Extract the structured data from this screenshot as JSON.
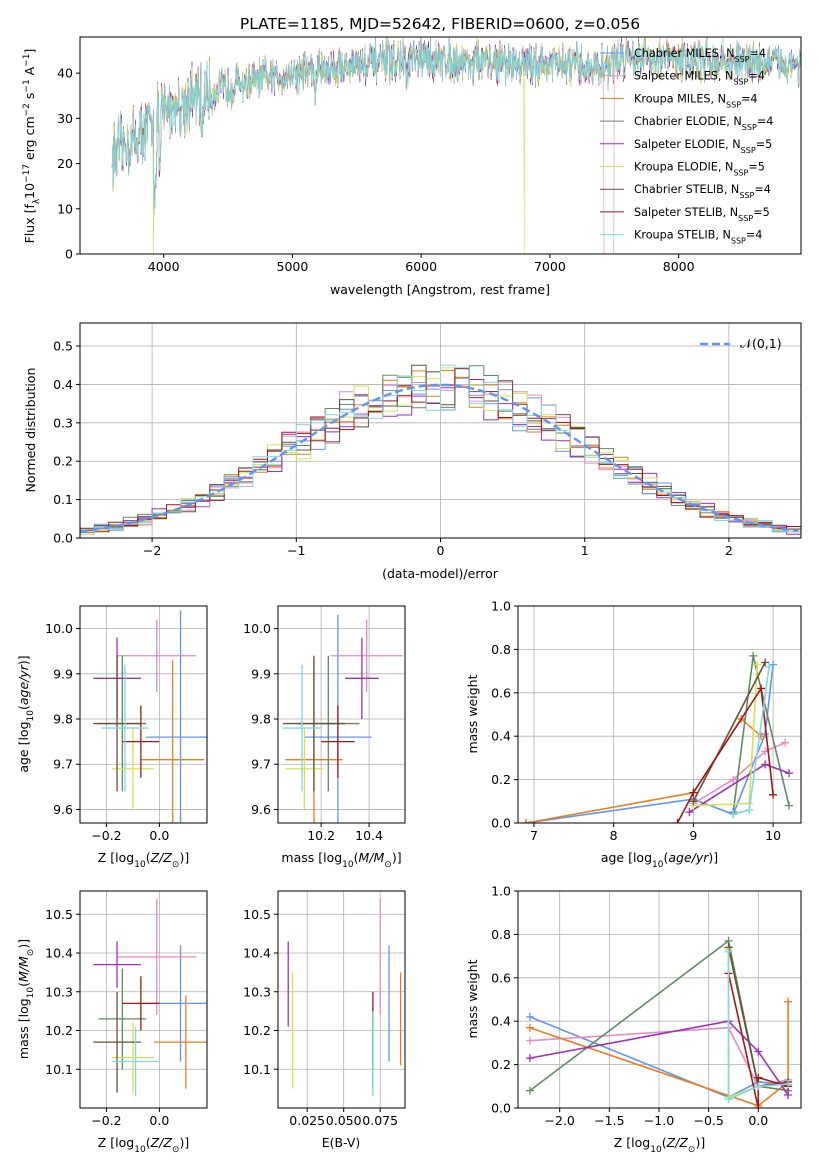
{
  "figure": {
    "title": "PLATE=1185, MJD=52642, FIBERID=0600, z=0.056"
  },
  "colors": {
    "Chabrier MILES": "#6495ed",
    "Salpeter MILES": "#e889c5",
    "Kroupa MILES": "#e67e22",
    "Chabrier ELODIE": "#5f8b5f",
    "Salpeter ELODIE": "#9b30b5",
    "Kroupa ELODIE": "#d4e157",
    "Chabrier STELIB": "#6b4f3a",
    "Salpeter STELIB": "#a01818",
    "Kroupa STELIB": "#7fd8e0"
  },
  "chart_data": [
    {
      "type": "line",
      "id": "spectrum",
      "xlabel": "wavelength [Angstrom, rest frame]",
      "ylabel": "Flux [f",
      "ylabel_parts": {
        "a": "Flux [f",
        "b": "λ",
        "c": "10",
        "d": "−17",
        "e": " erg cm",
        "f": "−2",
        "g": " s",
        "h": "−1",
        "i": " A",
        "j": "−1",
        "k": "]"
      },
      "xlim": [
        3350,
        8950
      ],
      "ylim": [
        0,
        48
      ],
      "xticks": [
        4000,
        5000,
        6000,
        7000,
        8000
      ],
      "yticks": [
        0,
        10,
        20,
        30,
        40
      ],
      "xtick_labels": [
        "4000",
        "5000",
        "6000",
        "7000",
        "8000"
      ],
      "ytick_labels": [
        "0",
        "10",
        "20",
        "30",
        "40"
      ],
      "continuum": {
        "x": [
          3600,
          3700,
          3800,
          3900,
          4000,
          4200,
          4500,
          5000,
          5500,
          6000,
          6500,
          7000,
          7400,
          7600,
          8000,
          8500,
          8950
        ],
        "y": [
          22,
          24,
          26,
          29,
          32,
          34,
          37,
          40,
          42,
          43,
          42.5,
          42,
          41,
          44,
          43,
          42.5,
          42
        ]
      },
      "legend": {
        "placement": "upper-right",
        "entries": [
          {
            "name": "Chabrier MILES",
            "n": "4"
          },
          {
            "name": "Salpeter MILES",
            "n": "4"
          },
          {
            "name": "Kroupa MILES",
            "n": "4"
          },
          {
            "name": "Chabrier ELODIE",
            "n": "4"
          },
          {
            "name": "Salpeter ELODIE",
            "n": "5"
          },
          {
            "name": "Kroupa ELODIE",
            "n": "5"
          },
          {
            "name": "Chabrier STELIB",
            "n": "4"
          },
          {
            "name": "Salpeter STELIB",
            "n": "5"
          },
          {
            "name": "Kroupa STELIB",
            "n": "4"
          }
        ]
      }
    },
    {
      "type": "bar",
      "id": "residuals",
      "xlabel": "(data-model)/error",
      "ylabel": "Normed distribution",
      "xlim": [
        -2.5,
        2.5
      ],
      "ylim": [
        0,
        0.56
      ],
      "xticks": [
        -2,
        -1,
        0,
        1,
        2
      ],
      "yticks": [
        0,
        0.1,
        0.2,
        0.3,
        0.4,
        0.5
      ],
      "xtick_labels": [
        "−2",
        "−1",
        "0",
        "1",
        "2"
      ],
      "ytick_labels": [
        "0.0",
        "0.1",
        "0.2",
        "0.3",
        "0.4",
        "0.5"
      ],
      "bin_width": 0.1,
      "legend": {
        "placement": "upper-right",
        "label": "𝒩(0,1)"
      },
      "grid": true
    },
    {
      "type": "scatter",
      "id": "age-vs-Z",
      "xlabel": "Z [log10(Z/Z⊙)]",
      "ylabel": "age  [log10(age/yr)]",
      "xlim": [
        -0.3,
        0.18
      ],
      "ylim": [
        9.57,
        10.05
      ],
      "xticks": [
        -0.2,
        0.0
      ],
      "yticks": [
        9.6,
        9.7,
        9.8,
        9.9,
        10.0
      ],
      "xtick_labels": [
        "−0.2",
        "0.0"
      ],
      "ytick_labels": [
        "9.6",
        "9.7",
        "9.8",
        "9.9",
        "10.0"
      ],
      "points": [
        {
          "model": "Chabrier MILES",
          "x": 0.08,
          "xerr": 0.13,
          "y": 9.76,
          "yerr": 0.28
        },
        {
          "model": "Salpeter MILES",
          "x": -0.01,
          "xerr": 0.15,
          "y": 9.94,
          "yerr": 0.08
        },
        {
          "model": "Kroupa MILES",
          "x": 0.05,
          "xerr": 0.12,
          "y": 9.71,
          "yerr": 0.22
        },
        {
          "model": "Chabrier ELODIE",
          "x": -0.14,
          "xerr": 0.09,
          "y": 9.79,
          "yerr": 0.15
        },
        {
          "model": "Salpeter ELODIE",
          "x": -0.16,
          "xerr": 0.09,
          "y": 9.89,
          "yerr": 0.09
        },
        {
          "model": "Kroupa ELODIE",
          "x": -0.1,
          "xerr": 0.08,
          "y": 9.69,
          "yerr": 0.09
        },
        {
          "model": "Chabrier STELIB",
          "x": -0.16,
          "xerr": 0.09,
          "y": 9.79,
          "yerr": 0.15
        },
        {
          "model": "Salpeter STELIB",
          "x": -0.07,
          "xerr": 0.07,
          "y": 9.75,
          "yerr": 0.08
        },
        {
          "model": "Kroupa STELIB",
          "x": -0.13,
          "xerr": 0.09,
          "y": 9.78,
          "yerr": 0.14
        }
      ]
    },
    {
      "type": "scatter",
      "id": "age-vs-mass",
      "xlabel": "mass [log10(M/M⊙)]",
      "ylabel": "",
      "xlim": [
        10.02,
        10.55
      ],
      "ylim": [
        9.57,
        10.05
      ],
      "xticks": [
        10.2,
        10.4
      ],
      "yticks": [
        9.6,
        9.7,
        9.8,
        9.9,
        10.0
      ],
      "xtick_labels": [
        "10.2",
        "10.4"
      ],
      "ytick_labels": [
        "9.6",
        "9.7",
        "9.8",
        "9.9",
        "10.0"
      ],
      "points": [
        {
          "model": "Chabrier MILES",
          "x": 10.27,
          "xerr": 0.14,
          "y": 9.76,
          "yerr": 0.27
        },
        {
          "model": "Salpeter MILES",
          "x": 10.39,
          "xerr": 0.15,
          "y": 9.94,
          "yerr": 0.08
        },
        {
          "model": "Kroupa MILES",
          "x": 10.17,
          "xerr": 0.12,
          "y": 9.71,
          "yerr": 0.22
        },
        {
          "model": "Chabrier ELODIE",
          "x": 10.23,
          "xerr": 0.13,
          "y": 9.79,
          "yerr": 0.15
        },
        {
          "model": "Salpeter ELODIE",
          "x": 10.37,
          "xerr": 0.07,
          "y": 9.89,
          "yerr": 0.09
        },
        {
          "model": "Kroupa ELODIE",
          "x": 10.13,
          "xerr": 0.08,
          "y": 9.69,
          "yerr": 0.09
        },
        {
          "model": "Chabrier STELIB",
          "x": 10.17,
          "xerr": 0.13,
          "y": 9.79,
          "yerr": 0.15
        },
        {
          "model": "Salpeter STELIB",
          "x": 10.27,
          "xerr": 0.07,
          "y": 9.75,
          "yerr": 0.08
        },
        {
          "model": "Kroupa STELIB",
          "x": 10.12,
          "xerr": 0.08,
          "y": 9.78,
          "yerr": 0.14
        }
      ]
    },
    {
      "type": "line",
      "id": "mass-weight-vs-age",
      "xlabel": "age  [log10(age/yr)]",
      "ylabel": "mass weight",
      "xlim": [
        6.8,
        10.35
      ],
      "ylim": [
        0,
        1
      ],
      "xticks": [
        7,
        8,
        9,
        10
      ],
      "yticks": [
        0,
        0.2,
        0.4,
        0.6,
        0.8,
        1.0
      ],
      "xtick_labels": [
        "7",
        "8",
        "9",
        "10"
      ],
      "ytick_labels": [
        "0.0",
        "0.2",
        "0.4",
        "0.6",
        "0.8",
        "1.0"
      ],
      "series": [
        {
          "model": "Chabrier MILES",
          "x": [
            6.9,
            9.0,
            9.5,
            9.9,
            10.0
          ],
          "y": [
            0.0,
            0.11,
            0.04,
            0.41,
            0.73
          ]
        },
        {
          "model": "Salpeter MILES",
          "x": [
            9.0,
            9.5,
            9.9,
            10.15
          ],
          "y": [
            0.09,
            0.2,
            0.33,
            0.37
          ]
        },
        {
          "model": "Kroupa MILES",
          "x": [
            6.9,
            9.0,
            9.6,
            9.85
          ],
          "y": [
            0.0,
            0.14,
            0.48,
            0.4
          ]
        },
        {
          "model": "Chabrier ELODIE",
          "x": [
            9.5,
            9.75,
            10.2
          ],
          "y": [
            0.05,
            0.77,
            0.08
          ]
        },
        {
          "model": "Salpeter ELODIE",
          "x": [
            8.95,
            9.9,
            10.2
          ],
          "y": [
            0.05,
            0.27,
            0.23
          ]
        },
        {
          "model": "Kroupa ELODIE",
          "x": [
            9.0,
            9.7,
            9.8
          ],
          "y": [
            0.08,
            0.09,
            0.73
          ]
        },
        {
          "model": "Chabrier STELIB",
          "x": [
            9.0,
            9.9
          ],
          "y": [
            0.1,
            0.74
          ]
        },
        {
          "model": "Salpeter STELIB",
          "x": [
            8.8,
            9.0,
            9.85,
            10.0
          ],
          "y": [
            0.0,
            0.14,
            0.62,
            0.13
          ]
        },
        {
          "model": "Kroupa STELIB",
          "x": [
            9.5,
            9.7,
            9.95
          ],
          "y": [
            0.04,
            0.06,
            0.72
          ]
        }
      ]
    },
    {
      "type": "scatter",
      "id": "mass-vs-Z",
      "xlabel": "Z [log10(Z/Z⊙)]",
      "ylabel": "mass [log10(M/M⊙)]",
      "xlim": [
        -0.3,
        0.18
      ],
      "ylim": [
        10.0,
        10.56
      ],
      "xticks": [
        -0.2,
        0.0
      ],
      "yticks": [
        10.1,
        10.2,
        10.3,
        10.4,
        10.5
      ],
      "xtick_labels": [
        "−0.2",
        "0.0"
      ],
      "ytick_labels": [
        "10.1",
        "10.2",
        "10.3",
        "10.4",
        "10.5"
      ],
      "points": [
        {
          "model": "Chabrier MILES",
          "x": 0.08,
          "xerr": 0.13,
          "y": 10.27,
          "yerr": 0.15
        },
        {
          "model": "Salpeter MILES",
          "x": -0.01,
          "xerr": 0.15,
          "y": 10.39,
          "yerr": 0.15
        },
        {
          "model": "Kroupa MILES",
          "x": 0.1,
          "xerr": 0.12,
          "y": 10.17,
          "yerr": 0.12
        },
        {
          "model": "Chabrier ELODIE",
          "x": -0.14,
          "xerr": 0.09,
          "y": 10.23,
          "yerr": 0.13
        },
        {
          "model": "Salpeter ELODIE",
          "x": -0.16,
          "xerr": 0.09,
          "y": 10.37,
          "yerr": 0.06
        },
        {
          "model": "Kroupa ELODIE",
          "x": -0.1,
          "xerr": 0.08,
          "y": 10.13,
          "yerr": 0.09
        },
        {
          "model": "Chabrier STELIB",
          "x": -0.16,
          "xerr": 0.09,
          "y": 10.17,
          "yerr": 0.13
        },
        {
          "model": "Salpeter STELIB",
          "x": -0.07,
          "xerr": 0.07,
          "y": 10.27,
          "yerr": 0.07
        },
        {
          "model": "Kroupa STELIB",
          "x": -0.09,
          "xerr": 0.09,
          "y": 10.12,
          "yerr": 0.09
        }
      ]
    },
    {
      "type": "scatter",
      "id": "mass-vs-ebv",
      "xlabel": "E(B-V)",
      "ylabel": "",
      "xlim": [
        0.005,
        0.092
      ],
      "ylim": [
        10.0,
        10.56
      ],
      "xticks": [
        0.025,
        0.05,
        0.075
      ],
      "yticks": [
        10.1,
        10.2,
        10.3,
        10.4,
        10.5
      ],
      "xtick_labels": [
        "0.025",
        "0.050",
        "0.075"
      ],
      "ytick_labels": [
        "10.1",
        "10.2",
        "10.3",
        "10.4",
        "10.5"
      ],
      "points": [
        {
          "model": "Chabrier MILES",
          "x": 0.081,
          "y": 10.27,
          "yerr": 0.15
        },
        {
          "model": "Salpeter MILES",
          "x": 0.075,
          "y": 10.39,
          "yerr": 0.15
        },
        {
          "model": "Kroupa MILES",
          "x": 0.089,
          "y": 10.23,
          "yerr": 0.12
        },
        {
          "model": "Chabrier ELODIE",
          "x": 0.07,
          "y": 10.15,
          "yerr": 0.1
        },
        {
          "model": "Salpeter ELODIE",
          "x": 0.012,
          "y": 10.32,
          "yerr": 0.11
        },
        {
          "model": "Kroupa ELODIE",
          "x": 0.015,
          "y": 10.2,
          "yerr": 0.15
        },
        {
          "model": "Chabrier STELIB",
          "x": 0.07,
          "y": 10.18,
          "yerr": 0.08
        },
        {
          "model": "Salpeter STELIB",
          "x": 0.07,
          "y": 10.26,
          "yerr": 0.04
        },
        {
          "model": "Kroupa STELIB",
          "x": 0.07,
          "y": 10.14,
          "yerr": 0.11
        }
      ]
    },
    {
      "type": "line",
      "id": "mass-weight-vs-Z",
      "xlabel": "Z [log10(Z/Z⊙)]",
      "ylabel": "mass weight",
      "xlim": [
        -2.42,
        0.43
      ],
      "ylim": [
        0,
        1
      ],
      "xticks": [
        -2.0,
        -1.5,
        -1.0,
        -0.5,
        0.0
      ],
      "yticks": [
        0,
        0.2,
        0.4,
        0.6,
        0.8,
        1.0
      ],
      "xtick_labels": [
        "−2.0",
        "−1.5",
        "−1.0",
        "−0.5",
        "0.0"
      ],
      "ytick_labels": [
        "0.0",
        "0.2",
        "0.4",
        "0.6",
        "0.8",
        "1.0"
      ],
      "series": [
        {
          "model": "Chabrier MILES",
          "x": [
            -2.3,
            -0.3,
            0.0,
            0.3
          ],
          "y": [
            0.42,
            0.05,
            0.12,
            0.11
          ]
        },
        {
          "model": "Salpeter MILES",
          "x": [
            -2.3,
            -0.3,
            0.0,
            0.3
          ],
          "y": [
            0.31,
            0.37,
            0.1,
            0.13
          ]
        },
        {
          "model": "Kroupa MILES",
          "x": [
            -2.3,
            0.0,
            0.3,
            0.3
          ],
          "y": [
            0.37,
            0.01,
            0.12,
            0.49
          ]
        },
        {
          "model": "Chabrier ELODIE",
          "x": [
            -2.3,
            -0.3,
            0.0,
            0.3
          ],
          "y": [
            0.08,
            0.77,
            0.1,
            0.08
          ]
        },
        {
          "model": "Salpeter ELODIE",
          "x": [
            -2.3,
            -0.3,
            0.0,
            0.3
          ],
          "y": [
            0.23,
            0.4,
            0.26,
            0.06
          ]
        },
        {
          "model": "Kroupa ELODIE",
          "x": [
            -0.3,
            -0.3,
            0.0
          ],
          "y": [
            0.73,
            0.05,
            0.1
          ]
        },
        {
          "model": "Chabrier STELIB",
          "x": [
            -0.3,
            0.0,
            0.3
          ],
          "y": [
            0.74,
            0.1,
            0.12
          ]
        },
        {
          "model": "Salpeter STELIB",
          "x": [
            -0.3,
            0.0,
            0.0,
            0.3
          ],
          "y": [
            0.62,
            0.0,
            0.14,
            0.1
          ]
        },
        {
          "model": "Kroupa STELIB",
          "x": [
            -0.3,
            -0.3,
            0.0,
            0.3
          ],
          "y": [
            0.72,
            0.04,
            0.1,
            0.11
          ]
        }
      ]
    }
  ]
}
